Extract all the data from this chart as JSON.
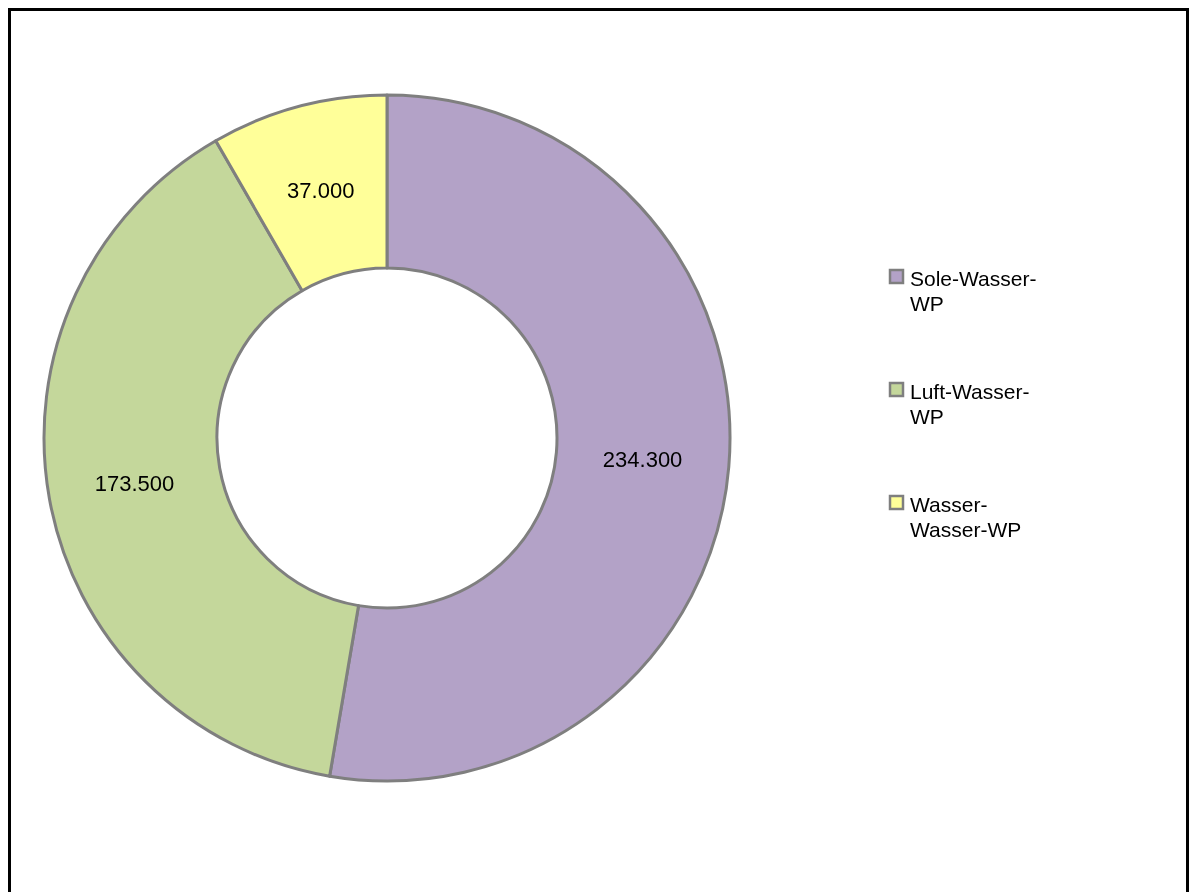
{
  "chart_data": {
    "type": "donut",
    "categories": [
      "Sole-Wasser-WP",
      "Luft-Wasser-WP",
      "Wasser-Wasser-WP"
    ],
    "values": [
      234300,
      173500,
      37000
    ],
    "value_labels": [
      "234.300",
      "173.500",
      "37.000"
    ],
    "colors": [
      "#b3a2c7",
      "#c4d79b",
      "#ffff99"
    ],
    "legend": "right"
  }
}
